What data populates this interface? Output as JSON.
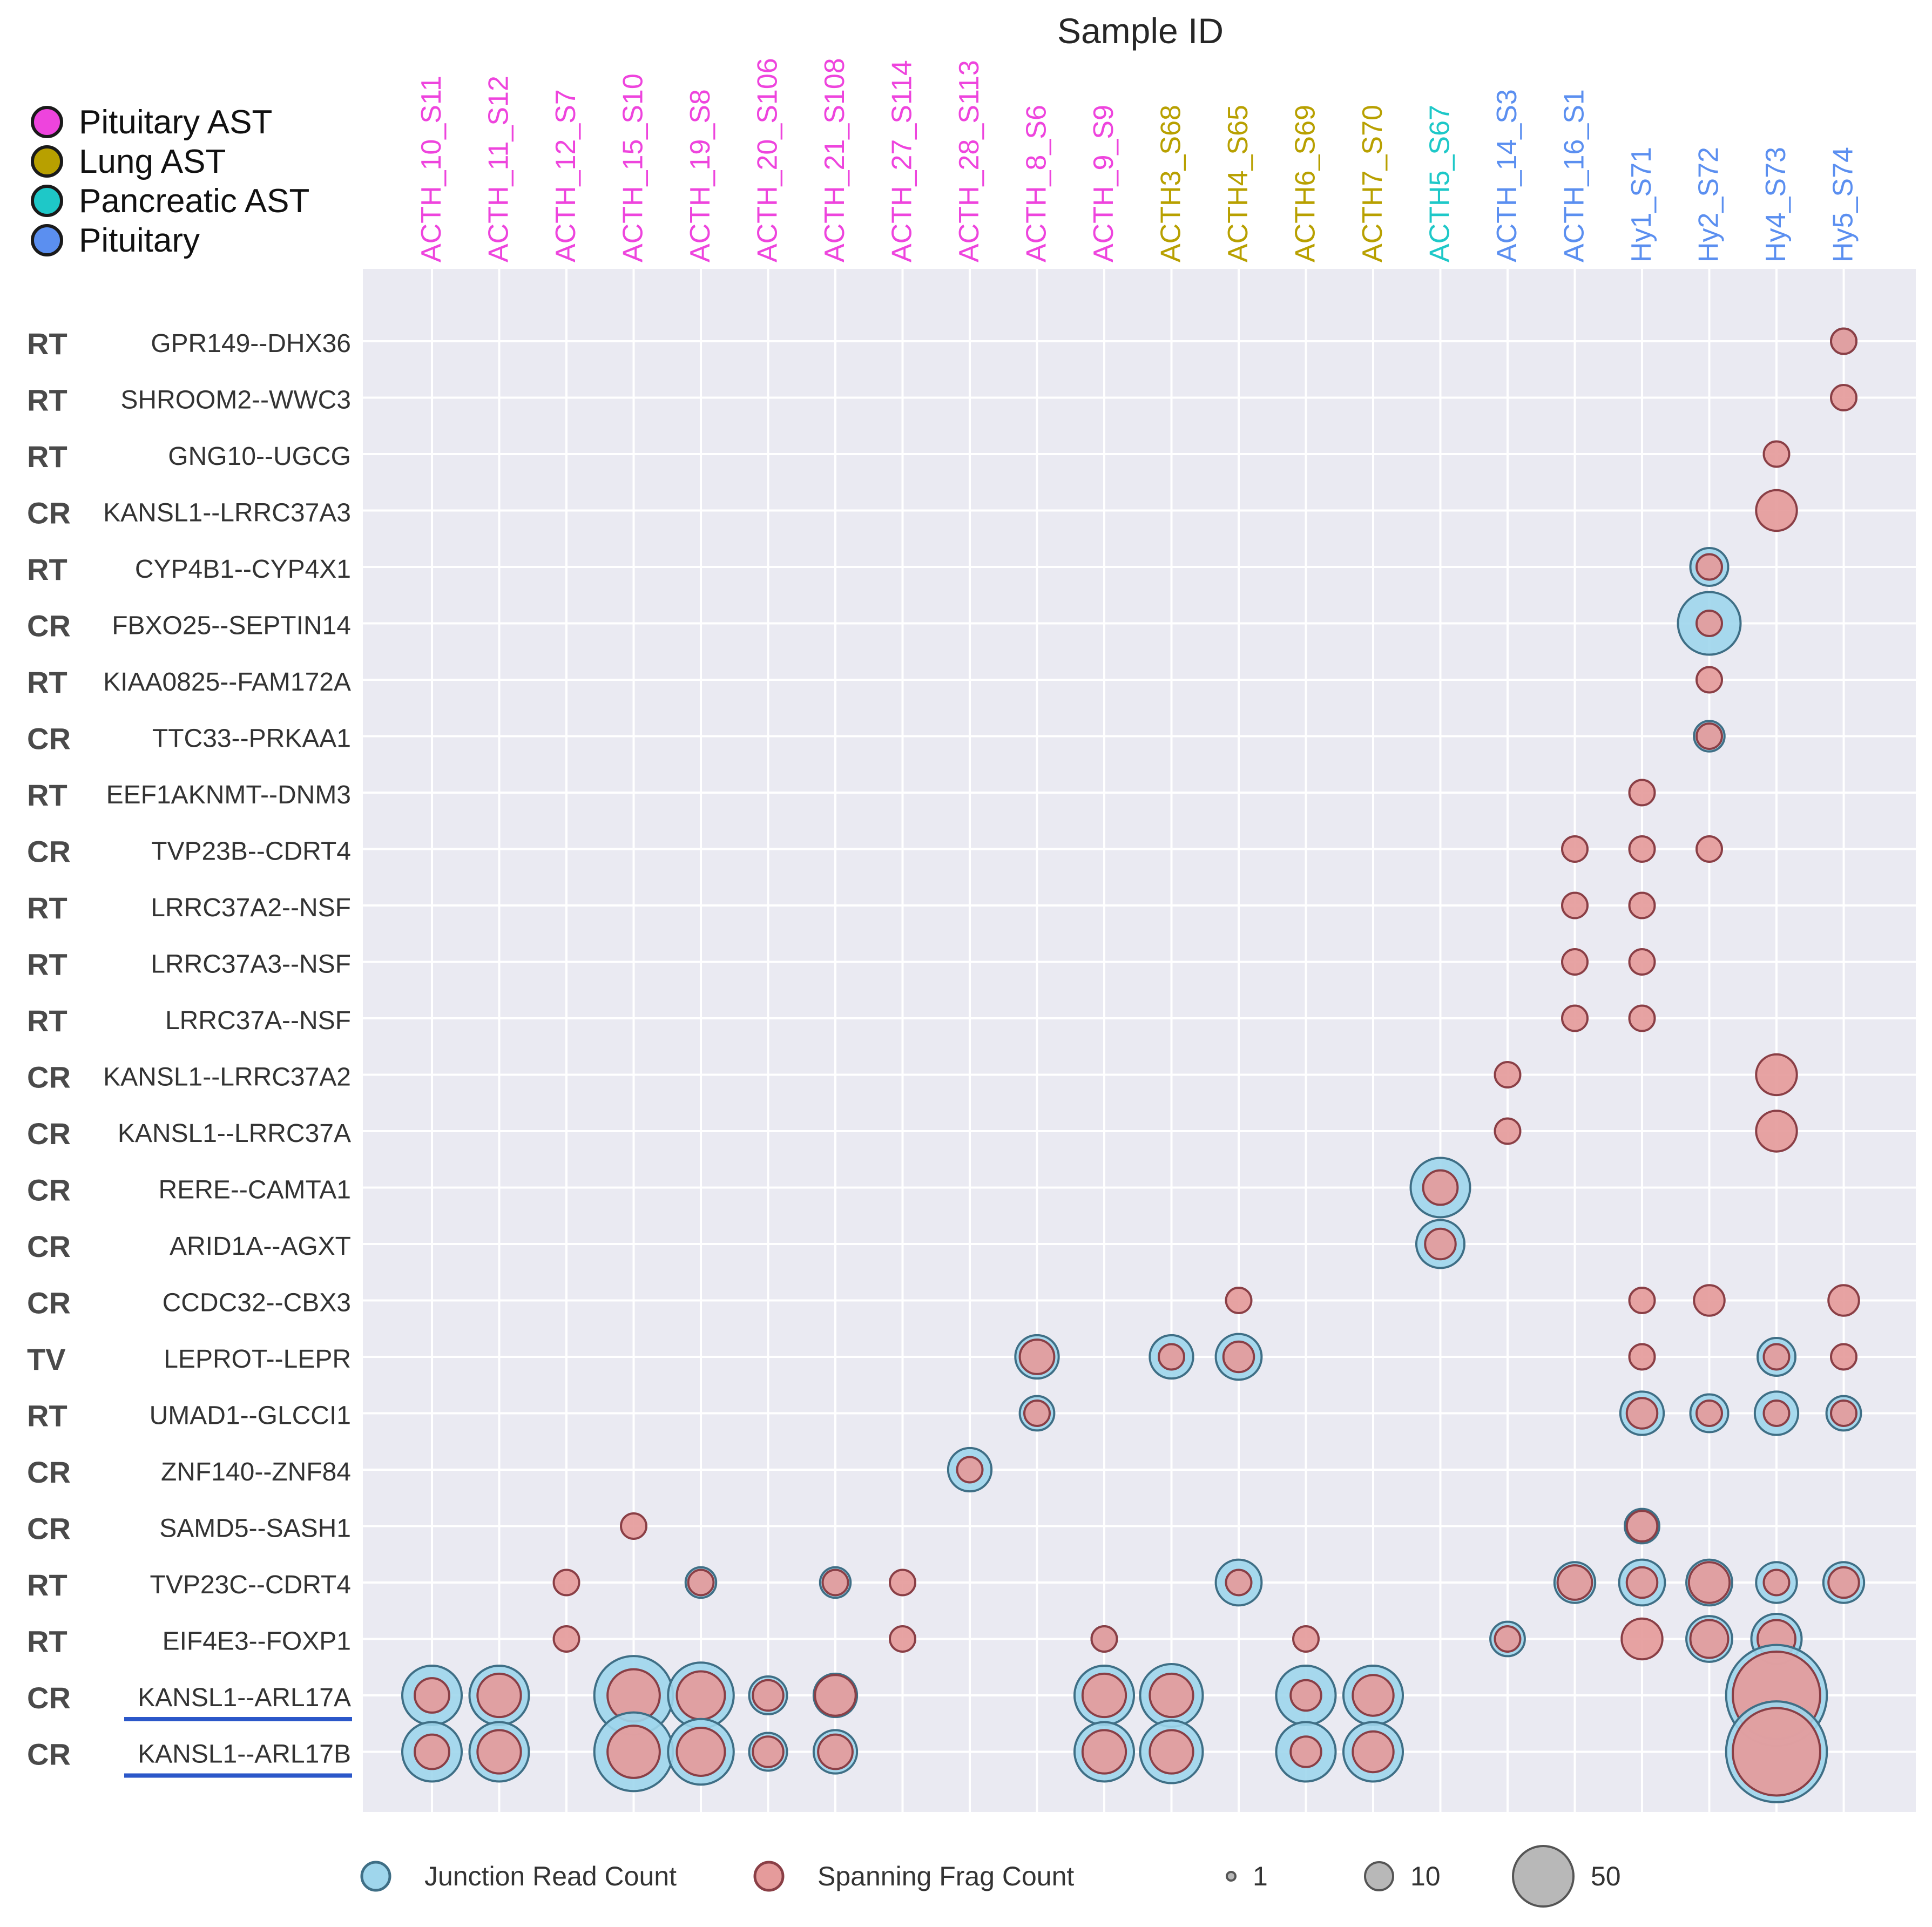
{
  "chart_data": {
    "type": "scatter",
    "title": "Sample ID",
    "legend_groups": [
      {
        "name": "Pituitary AST",
        "color": "#ee44dd"
      },
      {
        "name": "Lung AST",
        "color": "#b8a000"
      },
      {
        "name": "Pancreatic AST",
        "color": "#1ec8c8"
      },
      {
        "name": "Pituitary",
        "color": "#5b8ff0"
      }
    ],
    "samples": [
      {
        "id": "ACTH_10_S11",
        "group": 0
      },
      {
        "id": "ACTH_11_S12",
        "group": 0
      },
      {
        "id": "ACTH_12_S7",
        "group": 0
      },
      {
        "id": "ACTH_15_S10",
        "group": 0
      },
      {
        "id": "ACTH_19_S8",
        "group": 0
      },
      {
        "id": "ACTH_20_S106",
        "group": 0
      },
      {
        "id": "ACTH_21_S108",
        "group": 0
      },
      {
        "id": "ACTH_27_S114",
        "group": 0
      },
      {
        "id": "ACTH_28_S113",
        "group": 0
      },
      {
        "id": "ACTH_8_S6",
        "group": 0
      },
      {
        "id": "ACTH_9_S9",
        "group": 0
      },
      {
        "id": "ACTH3_S68",
        "group": 1
      },
      {
        "id": "ACTH4_S65",
        "group": 1
      },
      {
        "id": "ACTH6_S69",
        "group": 1
      },
      {
        "id": "ACTH7_S70",
        "group": 1
      },
      {
        "id": "ACTH5_S67",
        "group": 2
      },
      {
        "id": "ACTH_14_S3",
        "group": 3
      },
      {
        "id": "ACTH_16_S1",
        "group": 3
      },
      {
        "id": "Hy1_S71",
        "group": 3
      },
      {
        "id": "Hy2_S72",
        "group": 3
      },
      {
        "id": "Hy4_S73",
        "group": 3
      },
      {
        "id": "Hy5_S74",
        "group": 3
      }
    ],
    "fusions": [
      {
        "type": "RT",
        "name": "GPR149--DHX36",
        "underline": false
      },
      {
        "type": "RT",
        "name": "SHROOM2--WWC3",
        "underline": false
      },
      {
        "type": "RT",
        "name": "GNG10--UGCG",
        "underline": false
      },
      {
        "type": "CR",
        "name": "KANSL1--LRRC37A3",
        "underline": false
      },
      {
        "type": "RT",
        "name": "CYP4B1--CYP4X1",
        "underline": false
      },
      {
        "type": "CR",
        "name": "FBXO25--SEPTIN14",
        "underline": false
      },
      {
        "type": "RT",
        "name": "KIAA0825--FAM172A",
        "underline": false
      },
      {
        "type": "CR",
        "name": "TTC33--PRKAA1",
        "underline": false
      },
      {
        "type": "RT",
        "name": "EEF1AKNMT--DNM3",
        "underline": false
      },
      {
        "type": "CR",
        "name": "TVP23B--CDRT4",
        "underline": false
      },
      {
        "type": "RT",
        "name": "LRRC37A2--NSF",
        "underline": false
      },
      {
        "type": "RT",
        "name": "LRRC37A3--NSF",
        "underline": false
      },
      {
        "type": "RT",
        "name": "LRRC37A--NSF",
        "underline": false
      },
      {
        "type": "CR",
        "name": "KANSL1--LRRC37A2",
        "underline": false
      },
      {
        "type": "CR",
        "name": "KANSL1--LRRC37A",
        "underline": false
      },
      {
        "type": "CR",
        "name": "RERE--CAMTA1",
        "underline": false
      },
      {
        "type": "CR",
        "name": "ARID1A--AGXT",
        "underline": false
      },
      {
        "type": "CR",
        "name": "CCDC32--CBX3",
        "underline": false
      },
      {
        "type": "TV",
        "name": "LEPROT--LEPR",
        "underline": false
      },
      {
        "type": "RT",
        "name": "UMAD1--GLCCI1",
        "underline": false
      },
      {
        "type": "CR",
        "name": "ZNF140--ZNF84",
        "underline": false
      },
      {
        "type": "CR",
        "name": "SAMD5--SASH1",
        "underline": false
      },
      {
        "type": "RT",
        "name": "TVP23C--CDRT4",
        "underline": false
      },
      {
        "type": "RT",
        "name": "EIF4E3--FOXP1",
        "underline": false
      },
      {
        "type": "CR",
        "name": "KANSL1--ARL17A",
        "underline": true
      },
      {
        "type": "CR",
        "name": "KANSL1--ARL17B",
        "underline": true
      }
    ],
    "points": [
      {
        "fusion": "GPR149--DHX36",
        "sample": "Hy5_S74",
        "junction": 1,
        "spanning": 1
      },
      {
        "fusion": "SHROOM2--WWC3",
        "sample": "Hy5_S74",
        "junction": 0,
        "spanning": 1
      },
      {
        "fusion": "GNG10--UGCG",
        "sample": "Hy4_S73",
        "junction": 0,
        "spanning": 1
      },
      {
        "fusion": "KANSL1--LRRC37A3",
        "sample": "Hy4_S73",
        "junction": 0,
        "spanning": 5
      },
      {
        "fusion": "CYP4B1--CYP4X1",
        "sample": "Hy2_S72",
        "junction": 4,
        "spanning": 1
      },
      {
        "fusion": "FBXO25--SEPTIN14",
        "sample": "Hy2_S72",
        "junction": 16,
        "spanning": 1
      },
      {
        "fusion": "KIAA0825--FAM172A",
        "sample": "Hy2_S72",
        "junction": 0,
        "spanning": 1
      },
      {
        "fusion": "TTC33--PRKAA1",
        "sample": "Hy2_S72",
        "junction": 2,
        "spanning": 1
      },
      {
        "fusion": "EEF1AKNMT--DNM3",
        "sample": "Hy1_S71",
        "junction": 0,
        "spanning": 1
      },
      {
        "fusion": "TVP23B--CDRT4",
        "sample": "ACTH_16_S1",
        "junction": 0,
        "spanning": 1
      },
      {
        "fusion": "TVP23B--CDRT4",
        "sample": "Hy1_S71",
        "junction": 0,
        "spanning": 1
      },
      {
        "fusion": "TVP23B--CDRT4",
        "sample": "Hy2_S72",
        "junction": 0,
        "spanning": 1
      },
      {
        "fusion": "LRRC37A2--NSF",
        "sample": "ACTH_16_S1",
        "junction": 0,
        "spanning": 1
      },
      {
        "fusion": "LRRC37A2--NSF",
        "sample": "Hy1_S71",
        "junction": 0,
        "spanning": 1
      },
      {
        "fusion": "LRRC37A3--NSF",
        "sample": "ACTH_16_S1",
        "junction": 0,
        "spanning": 1
      },
      {
        "fusion": "LRRC37A3--NSF",
        "sample": "Hy1_S71",
        "junction": 0,
        "spanning": 1
      },
      {
        "fusion": "LRRC37A--NSF",
        "sample": "ACTH_16_S1",
        "junction": 0,
        "spanning": 1
      },
      {
        "fusion": "LRRC37A--NSF",
        "sample": "Hy1_S71",
        "junction": 0,
        "spanning": 1
      },
      {
        "fusion": "KANSL1--LRRC37A2",
        "sample": "ACTH_14_S3",
        "junction": 0,
        "spanning": 1
      },
      {
        "fusion": "KANSL1--LRRC37A2",
        "sample": "Hy4_S73",
        "junction": 0,
        "spanning": 5
      },
      {
        "fusion": "KANSL1--LRRC37A",
        "sample": "ACTH_14_S3",
        "junction": 0,
        "spanning": 1
      },
      {
        "fusion": "KANSL1--LRRC37A",
        "sample": "Hy4_S73",
        "junction": 0,
        "spanning": 5
      },
      {
        "fusion": "RERE--CAMTA1",
        "sample": "ACTH5_S67",
        "junction": 14,
        "spanning": 3
      },
      {
        "fusion": "ARID1A--AGXT",
        "sample": "ACTH5_S67",
        "junction": 8,
        "spanning": 2
      },
      {
        "fusion": "CCDC32--CBX3",
        "sample": "ACTH4_S65",
        "junction": 0,
        "spanning": 1
      },
      {
        "fusion": "CCDC32--CBX3",
        "sample": "Hy1_S71",
        "junction": 0,
        "spanning": 1
      },
      {
        "fusion": "CCDC32--CBX3",
        "sample": "Hy2_S72",
        "junction": 0,
        "spanning": 2
      },
      {
        "fusion": "CCDC32--CBX3",
        "sample": "Hy5_S74",
        "junction": 0,
        "spanning": 2
      },
      {
        "fusion": "LEPROT--LEPR",
        "sample": "ACTH_8_S6",
        "junction": 6,
        "spanning": 3
      },
      {
        "fusion": "LEPROT--LEPR",
        "sample": "ACTH3_S68",
        "junction": 6,
        "spanning": 1
      },
      {
        "fusion": "LEPROT--LEPR",
        "sample": "ACTH4_S65",
        "junction": 7,
        "spanning": 2
      },
      {
        "fusion": "LEPROT--LEPR",
        "sample": "Hy1_S71",
        "junction": 0,
        "spanning": 1
      },
      {
        "fusion": "LEPROT--LEPR",
        "sample": "Hy4_S73",
        "junction": 4,
        "spanning": 1
      },
      {
        "fusion": "LEPROT--LEPR",
        "sample": "Hy5_S74",
        "junction": 0,
        "spanning": 1
      },
      {
        "fusion": "UMAD1--GLCCI1",
        "sample": "ACTH_8_S6",
        "junction": 3,
        "spanning": 1
      },
      {
        "fusion": "UMAD1--GLCCI1",
        "sample": "Hy1_S71",
        "junction": 6,
        "spanning": 2
      },
      {
        "fusion": "UMAD1--GLCCI1",
        "sample": "Hy2_S72",
        "junction": 4,
        "spanning": 1
      },
      {
        "fusion": "UMAD1--GLCCI1",
        "sample": "Hy4_S73",
        "junction": 6,
        "spanning": 1
      },
      {
        "fusion": "UMAD1--GLCCI1",
        "sample": "Hy5_S74",
        "junction": 3,
        "spanning": 1
      },
      {
        "fusion": "ZNF140--ZNF84",
        "sample": "ACTH_28_S113",
        "junction": 6,
        "spanning": 1
      },
      {
        "fusion": "SAMD5--SASH1",
        "sample": "ACTH_15_S10",
        "junction": 0,
        "spanning": 1
      },
      {
        "fusion": "SAMD5--SASH1",
        "sample": "Hy1_S71",
        "junction": 3,
        "spanning": 2
      },
      {
        "fusion": "TVP23C--CDRT4",
        "sample": "ACTH_12_S7",
        "junction": 0,
        "spanning": 1
      },
      {
        "fusion": "TVP23C--CDRT4",
        "sample": "ACTH_19_S8",
        "junction": 2,
        "spanning": 1
      },
      {
        "fusion": "TVP23C--CDRT4",
        "sample": "ACTH_21_S108",
        "junction": 2,
        "spanning": 1
      },
      {
        "fusion": "TVP23C--CDRT4",
        "sample": "ACTH_27_S114",
        "junction": 0,
        "spanning": 1
      },
      {
        "fusion": "TVP23C--CDRT4",
        "sample": "ACTH4_S65",
        "junction": 7,
        "spanning": 1
      },
      {
        "fusion": "TVP23C--CDRT4",
        "sample": "ACTH_16_S1",
        "junction": 5,
        "spanning": 3
      },
      {
        "fusion": "TVP23C--CDRT4",
        "sample": "Hy1_S71",
        "junction": 7,
        "spanning": 2
      },
      {
        "fusion": "TVP23C--CDRT4",
        "sample": "Hy2_S72",
        "junction": 7,
        "spanning": 5
      },
      {
        "fusion": "TVP23C--CDRT4",
        "sample": "Hy4_S73",
        "junction": 5,
        "spanning": 1
      },
      {
        "fusion": "TVP23C--CDRT4",
        "sample": "Hy5_S74",
        "junction": 5,
        "spanning": 2
      },
      {
        "fusion": "EIF4E3--FOXP1",
        "sample": "ACTH_12_S7",
        "junction": 0,
        "spanning": 1
      },
      {
        "fusion": "EIF4E3--FOXP1",
        "sample": "ACTH_27_S114",
        "junction": 0,
        "spanning": 1
      },
      {
        "fusion": "EIF4E3--FOXP1",
        "sample": "ACTH_9_S9",
        "junction": 1,
        "spanning": 1
      },
      {
        "fusion": "EIF4E3--FOXP1",
        "sample": "ACTH6_S69",
        "junction": 0,
        "spanning": 1
      },
      {
        "fusion": "EIF4E3--FOXP1",
        "sample": "ACTH_14_S3",
        "junction": 3,
        "spanning": 1
      },
      {
        "fusion": "EIF4E3--FOXP1",
        "sample": "Hy1_S71",
        "junction": 0,
        "spanning": 5
      },
      {
        "fusion": "EIF4E3--FOXP1",
        "sample": "Hy2_S72",
        "junction": 7,
        "spanning": 4
      },
      {
        "fusion": "EIF4E3--FOXP1",
        "sample": "Hy4_S73",
        "junction": 9,
        "spanning": 4
      },
      {
        "fusion": "KANSL1--ARL17A",
        "sample": "ACTH_10_S11",
        "junction": 14,
        "spanning": 3
      },
      {
        "fusion": "KANSL1--ARL17A",
        "sample": "ACTH_11_S12",
        "junction": 14,
        "spanning": 6
      },
      {
        "fusion": "KANSL1--ARL17A",
        "sample": "ACTH_15_S10",
        "junction": 28,
        "spanning": 10
      },
      {
        "fusion": "KANSL1--ARL17A",
        "sample": "ACTH_19_S8",
        "junction": 18,
        "spanning": 8
      },
      {
        "fusion": "KANSL1--ARL17A",
        "sample": "ACTH_20_S106",
        "junction": 4,
        "spanning": 2
      },
      {
        "fusion": "KANSL1--ARL17A",
        "sample": "ACTH_21_S108",
        "junction": 6,
        "spanning": 5
      },
      {
        "fusion": "KANSL1--ARL17A",
        "sample": "ACTH_9_S9",
        "junction": 14,
        "spanning": 6
      },
      {
        "fusion": "KANSL1--ARL17A",
        "sample": "ACTH3_S68",
        "junction": 16,
        "spanning": 6
      },
      {
        "fusion": "KANSL1--ARL17A",
        "sample": "ACTH6_S69",
        "junction": 14,
        "spanning": 2
      },
      {
        "fusion": "KANSL1--ARL17A",
        "sample": "ACTH7_S70",
        "junction": 14,
        "spanning": 5
      },
      {
        "fusion": "KANSL1--ARL17A",
        "sample": "Hy4_S73",
        "junction": 50,
        "spanning": 36
      },
      {
        "fusion": "KANSL1--ARL17B",
        "sample": "ACTH_10_S11",
        "junction": 14,
        "spanning": 3
      },
      {
        "fusion": "KANSL1--ARL17B",
        "sample": "ACTH_11_S12",
        "junction": 14,
        "spanning": 6
      },
      {
        "fusion": "KANSL1--ARL17B",
        "sample": "ACTH_15_S10",
        "junction": 28,
        "spanning": 10
      },
      {
        "fusion": "KANSL1--ARL17B",
        "sample": "ACTH_19_S8",
        "junction": 18,
        "spanning": 8
      },
      {
        "fusion": "KANSL1--ARL17B",
        "sample": "ACTH_20_S106",
        "junction": 4,
        "spanning": 2
      },
      {
        "fusion": "KANSL1--ARL17B",
        "sample": "ACTH_21_S108",
        "junction": 6,
        "spanning": 3
      },
      {
        "fusion": "KANSL1--ARL17B",
        "sample": "ACTH_9_S9",
        "junction": 14,
        "spanning": 6
      },
      {
        "fusion": "KANSL1--ARL17B",
        "sample": "ACTH3_S68",
        "junction": 16,
        "spanning": 6
      },
      {
        "fusion": "KANSL1--ARL17B",
        "sample": "ACTH6_S69",
        "junction": 14,
        "spanning": 2
      },
      {
        "fusion": "KANSL1--ARL17B",
        "sample": "ACTH7_S70",
        "junction": 14,
        "spanning": 5
      },
      {
        "fusion": "KANSL1--ARL17B",
        "sample": "Hy4_S73",
        "junction": 50,
        "spanning": 36
      }
    ],
    "size_legend": {
      "junction_label": "Junction Read Count",
      "spanning_label": "Spanning Frag Count",
      "sizes": [
        1,
        10,
        50
      ]
    },
    "colors": {
      "junction": "#9fd6ec",
      "spanning": "#e59b9b",
      "size_key": "#b8b8b8",
      "plot_bg": "#eaeaf2",
      "underline": "#2b57c9"
    },
    "grid": true
  }
}
